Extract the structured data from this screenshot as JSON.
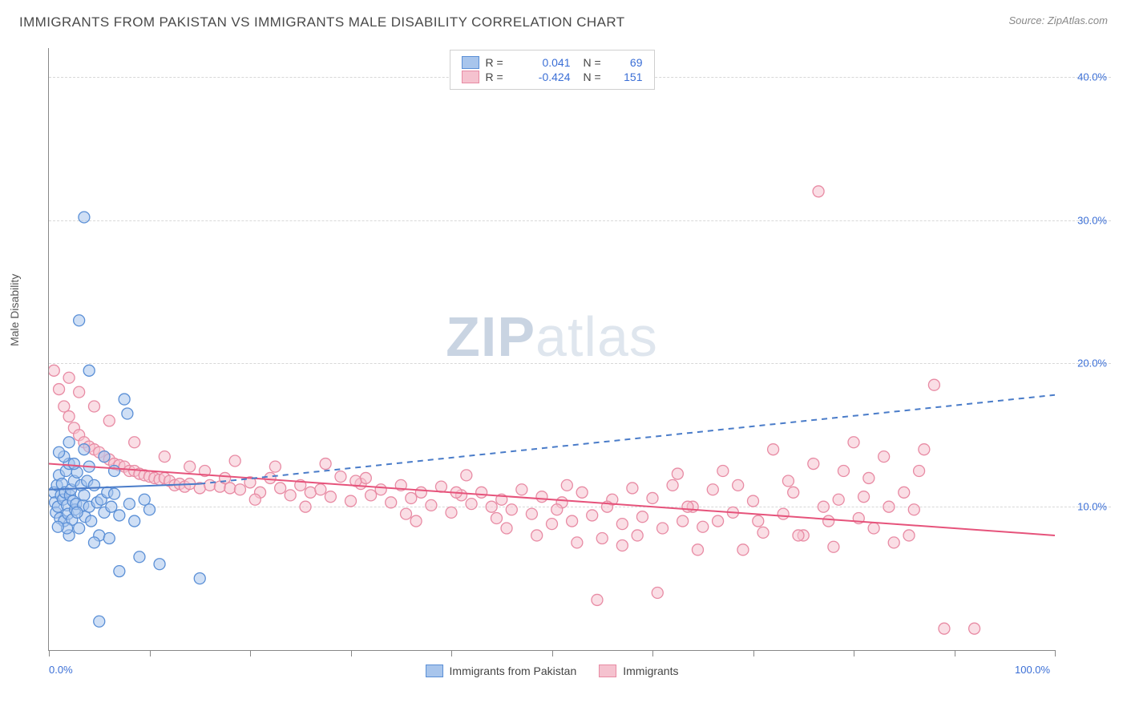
{
  "header": {
    "title": "IMMIGRANTS FROM PAKISTAN VS IMMIGRANTS MALE DISABILITY CORRELATION CHART",
    "source_prefix": "Source: ",
    "source": "ZipAtlas.com"
  },
  "chart": {
    "type": "scatter",
    "watermark_bold": "ZIP",
    "watermark_rest": "atlas",
    "y_axis_title": "Male Disability",
    "xlim": [
      0,
      100
    ],
    "ylim": [
      0,
      42
    ],
    "x_ticks": [
      0,
      10,
      20,
      30,
      40,
      50,
      60,
      70,
      80,
      90,
      100
    ],
    "x_labels": {
      "0": "0.0%",
      "100": "100.0%"
    },
    "y_gridlines": [
      10,
      20,
      30,
      40
    ],
    "y_labels": {
      "10": "10.0%",
      "20": "20.0%",
      "30": "30.0%",
      "40": "40.0%"
    },
    "background_color": "#ffffff",
    "grid_color": "#d8d8d8",
    "axis_color": "#888888",
    "tick_label_color": "#3b6fd6",
    "marker_radius": 7,
    "marker_stroke_width": 1.3,
    "trend_line_width": 2,
    "series": {
      "blue": {
        "label": "Immigrants from Pakistan",
        "fill": "#a8c5ec",
        "stroke": "#5a8fd6",
        "line_color": "#4a7cc9",
        "R": "0.041",
        "N": "69",
        "trend_solid": {
          "x1": 0,
          "y1": 11.2,
          "x2": 15,
          "y2": 11.6
        },
        "trend_dashed": {
          "x1": 15,
          "y1": 11.6,
          "x2": 100,
          "y2": 17.8
        },
        "points": [
          [
            0.5,
            11.0
          ],
          [
            0.6,
            10.3
          ],
          [
            0.7,
            9.6
          ],
          [
            0.8,
            11.5
          ],
          [
            0.9,
            10.0
          ],
          [
            1.0,
            12.2
          ],
          [
            1.1,
            9.2
          ],
          [
            1.2,
            10.8
          ],
          [
            1.3,
            11.6
          ],
          [
            1.4,
            10.5
          ],
          [
            1.5,
            9.0
          ],
          [
            1.6,
            11.0
          ],
          [
            1.7,
            12.5
          ],
          [
            1.8,
            10.1
          ],
          [
            1.9,
            9.5
          ],
          [
            2.0,
            13.0
          ],
          [
            2.1,
            10.8
          ],
          [
            2.2,
            11.2
          ],
          [
            2.3,
            9.1
          ],
          [
            2.4,
            10.4
          ],
          [
            2.5,
            11.8
          ],
          [
            2.6,
            9.8
          ],
          [
            2.7,
            10.2
          ],
          [
            2.8,
            12.4
          ],
          [
            3.0,
            8.5
          ],
          [
            3.2,
            11.5
          ],
          [
            3.4,
            10.1
          ],
          [
            3.5,
            10.8
          ],
          [
            3.6,
            9.3
          ],
          [
            3.8,
            11.8
          ],
          [
            4.0,
            10.0
          ],
          [
            4.2,
            9.0
          ],
          [
            4.5,
            11.5
          ],
          [
            4.8,
            10.3
          ],
          [
            5.0,
            8.0
          ],
          [
            5.2,
            10.5
          ],
          [
            5.5,
            9.6
          ],
          [
            5.8,
            11.0
          ],
          [
            6.0,
            7.8
          ],
          [
            6.2,
            10.0
          ],
          [
            6.5,
            10.9
          ],
          [
            7.0,
            9.4
          ],
          [
            7.5,
            17.5
          ],
          [
            4.0,
            19.5
          ],
          [
            7.8,
            16.5
          ],
          [
            8.0,
            10.2
          ],
          [
            8.5,
            9.0
          ],
          [
            9.0,
            6.5
          ],
          [
            9.5,
            10.5
          ],
          [
            10.0,
            9.8
          ],
          [
            3.0,
            23.0
          ],
          [
            3.5,
            30.2
          ],
          [
            5.0,
            2.0
          ],
          [
            11.0,
            6.0
          ],
          [
            15.0,
            5.0
          ],
          [
            7.0,
            5.5
          ],
          [
            2.0,
            8.0
          ],
          [
            4.5,
            7.5
          ],
          [
            6.5,
            12.5
          ],
          [
            1.5,
            13.5
          ],
          [
            2.5,
            13.0
          ],
          [
            3.5,
            14.0
          ],
          [
            4.0,
            12.8
          ],
          [
            5.5,
            13.5
          ],
          [
            1.0,
            13.8
          ],
          [
            2.0,
            14.5
          ],
          [
            2.8,
            9.6
          ],
          [
            1.8,
            8.5
          ],
          [
            0.9,
            8.6
          ]
        ]
      },
      "pink": {
        "label": "Immigrants",
        "fill": "#f5c2cf",
        "stroke": "#e88ba4",
        "line_color": "#e6537b",
        "R": "-0.424",
        "N": "151",
        "trend_solid": {
          "x1": 0,
          "y1": 13.0,
          "x2": 100,
          "y2": 8.0
        },
        "points": [
          [
            0.5,
            19.5
          ],
          [
            1.0,
            18.2
          ],
          [
            1.5,
            17.0
          ],
          [
            2.0,
            16.3
          ],
          [
            2.5,
            15.5
          ],
          [
            3.0,
            15.0
          ],
          [
            3.5,
            14.5
          ],
          [
            4.0,
            14.2
          ],
          [
            4.5,
            14.0
          ],
          [
            5.0,
            13.8
          ],
          [
            5.5,
            13.5
          ],
          [
            6.0,
            13.3
          ],
          [
            6.5,
            13.0
          ],
          [
            7.0,
            12.9
          ],
          [
            7.5,
            12.8
          ],
          [
            8.0,
            12.5
          ],
          [
            8.5,
            12.5
          ],
          [
            9.0,
            12.3
          ],
          [
            9.5,
            12.2
          ],
          [
            10.0,
            12.1
          ],
          [
            10.5,
            12.0
          ],
          [
            11.0,
            11.9
          ],
          [
            11.5,
            12.0
          ],
          [
            12.0,
            11.8
          ],
          [
            12.5,
            11.5
          ],
          [
            13.0,
            11.6
          ],
          [
            13.5,
            11.4
          ],
          [
            14.0,
            11.6
          ],
          [
            15.0,
            11.3
          ],
          [
            16.0,
            11.5
          ],
          [
            17.0,
            11.4
          ],
          [
            18.0,
            11.3
          ],
          [
            19.0,
            11.2
          ],
          [
            20.0,
            11.7
          ],
          [
            21.0,
            11.0
          ],
          [
            22.0,
            12.0
          ],
          [
            23.0,
            11.3
          ],
          [
            24.0,
            10.8
          ],
          [
            25.0,
            11.5
          ],
          [
            26.0,
            11.0
          ],
          [
            27.0,
            11.2
          ],
          [
            28.0,
            10.7
          ],
          [
            29.0,
            12.1
          ],
          [
            30.0,
            10.4
          ],
          [
            31.0,
            11.6
          ],
          [
            32.0,
            10.8
          ],
          [
            33.0,
            11.2
          ],
          [
            34.0,
            10.3
          ],
          [
            35.0,
            11.5
          ],
          [
            36.0,
            10.6
          ],
          [
            37.0,
            11.0
          ],
          [
            38.0,
            10.1
          ],
          [
            39.0,
            11.4
          ],
          [
            40.0,
            9.6
          ],
          [
            41.0,
            10.8
          ],
          [
            42.0,
            10.2
          ],
          [
            43.0,
            11.0
          ],
          [
            44.0,
            10.0
          ],
          [
            45.0,
            10.5
          ],
          [
            46.0,
            9.8
          ],
          [
            47.0,
            11.2
          ],
          [
            48.0,
            9.5
          ],
          [
            49.0,
            10.7
          ],
          [
            50.0,
            8.8
          ],
          [
            51.0,
            10.3
          ],
          [
            52.0,
            9.0
          ],
          [
            53.0,
            11.0
          ],
          [
            54.0,
            9.4
          ],
          [
            55.0,
            7.8
          ],
          [
            56.0,
            10.5
          ],
          [
            57.0,
            8.8
          ],
          [
            58.0,
            11.3
          ],
          [
            59.0,
            9.3
          ],
          [
            60.0,
            10.6
          ],
          [
            61.0,
            8.5
          ],
          [
            62.0,
            11.5
          ],
          [
            63.0,
            9.0
          ],
          [
            64.0,
            10.0
          ],
          [
            65.0,
            8.6
          ],
          [
            66.0,
            11.2
          ],
          [
            67.0,
            12.5
          ],
          [
            68.0,
            9.6
          ],
          [
            69.0,
            7.0
          ],
          [
            70.0,
            10.4
          ],
          [
            71.0,
            8.2
          ],
          [
            72.0,
            14.0
          ],
          [
            73.0,
            9.5
          ],
          [
            74.0,
            11.0
          ],
          [
            75.0,
            8.0
          ],
          [
            76.0,
            13.0
          ],
          [
            77.0,
            10.0
          ],
          [
            78.0,
            7.2
          ],
          [
            79.0,
            12.5
          ],
          [
            80.0,
            14.5
          ],
          [
            80.5,
            9.2
          ],
          [
            81.0,
            10.7
          ],
          [
            82.0,
            8.5
          ],
          [
            83.0,
            13.5
          ],
          [
            84.0,
            7.5
          ],
          [
            85.0,
            11.0
          ],
          [
            86.0,
            9.8
          ],
          [
            87.0,
            14.0
          ],
          [
            88.0,
            18.5
          ],
          [
            76.5,
            32.0
          ],
          [
            54.5,
            3.5
          ],
          [
            60.5,
            4.0
          ],
          [
            89.0,
            1.5
          ],
          [
            92.0,
            1.5
          ],
          [
            57.0,
            7.3
          ],
          [
            48.5,
            8.0
          ],
          [
            36.5,
            9.0
          ],
          [
            18.5,
            13.2
          ],
          [
            27.5,
            13.0
          ],
          [
            41.5,
            12.2
          ],
          [
            51.5,
            11.5
          ],
          [
            63.5,
            10.0
          ],
          [
            73.5,
            11.8
          ],
          [
            15.5,
            12.5
          ],
          [
            22.5,
            12.8
          ],
          [
            31.5,
            12.0
          ],
          [
            44.5,
            9.2
          ],
          [
            55.5,
            10.0
          ],
          [
            66.5,
            9.0
          ],
          [
            77.5,
            9.0
          ],
          [
            81.5,
            12.0
          ],
          [
            85.5,
            8.0
          ],
          [
            6.0,
            16.0
          ],
          [
            4.5,
            17.0
          ],
          [
            3.0,
            18.0
          ],
          [
            2.0,
            19.0
          ],
          [
            8.5,
            14.5
          ],
          [
            11.5,
            13.5
          ],
          [
            14.0,
            12.8
          ],
          [
            17.5,
            12.0
          ],
          [
            20.5,
            10.5
          ],
          [
            25.5,
            10.0
          ],
          [
            30.5,
            11.8
          ],
          [
            35.5,
            9.5
          ],
          [
            40.5,
            11.0
          ],
          [
            45.5,
            8.5
          ],
          [
            50.5,
            9.8
          ],
          [
            52.5,
            7.5
          ],
          [
            58.5,
            8.0
          ],
          [
            64.5,
            7.0
          ],
          [
            70.5,
            9.0
          ],
          [
            78.5,
            10.5
          ],
          [
            83.5,
            10.0
          ],
          [
            86.5,
            12.5
          ],
          [
            74.5,
            8.0
          ],
          [
            68.5,
            11.5
          ],
          [
            62.5,
            12.3
          ]
        ]
      }
    }
  }
}
